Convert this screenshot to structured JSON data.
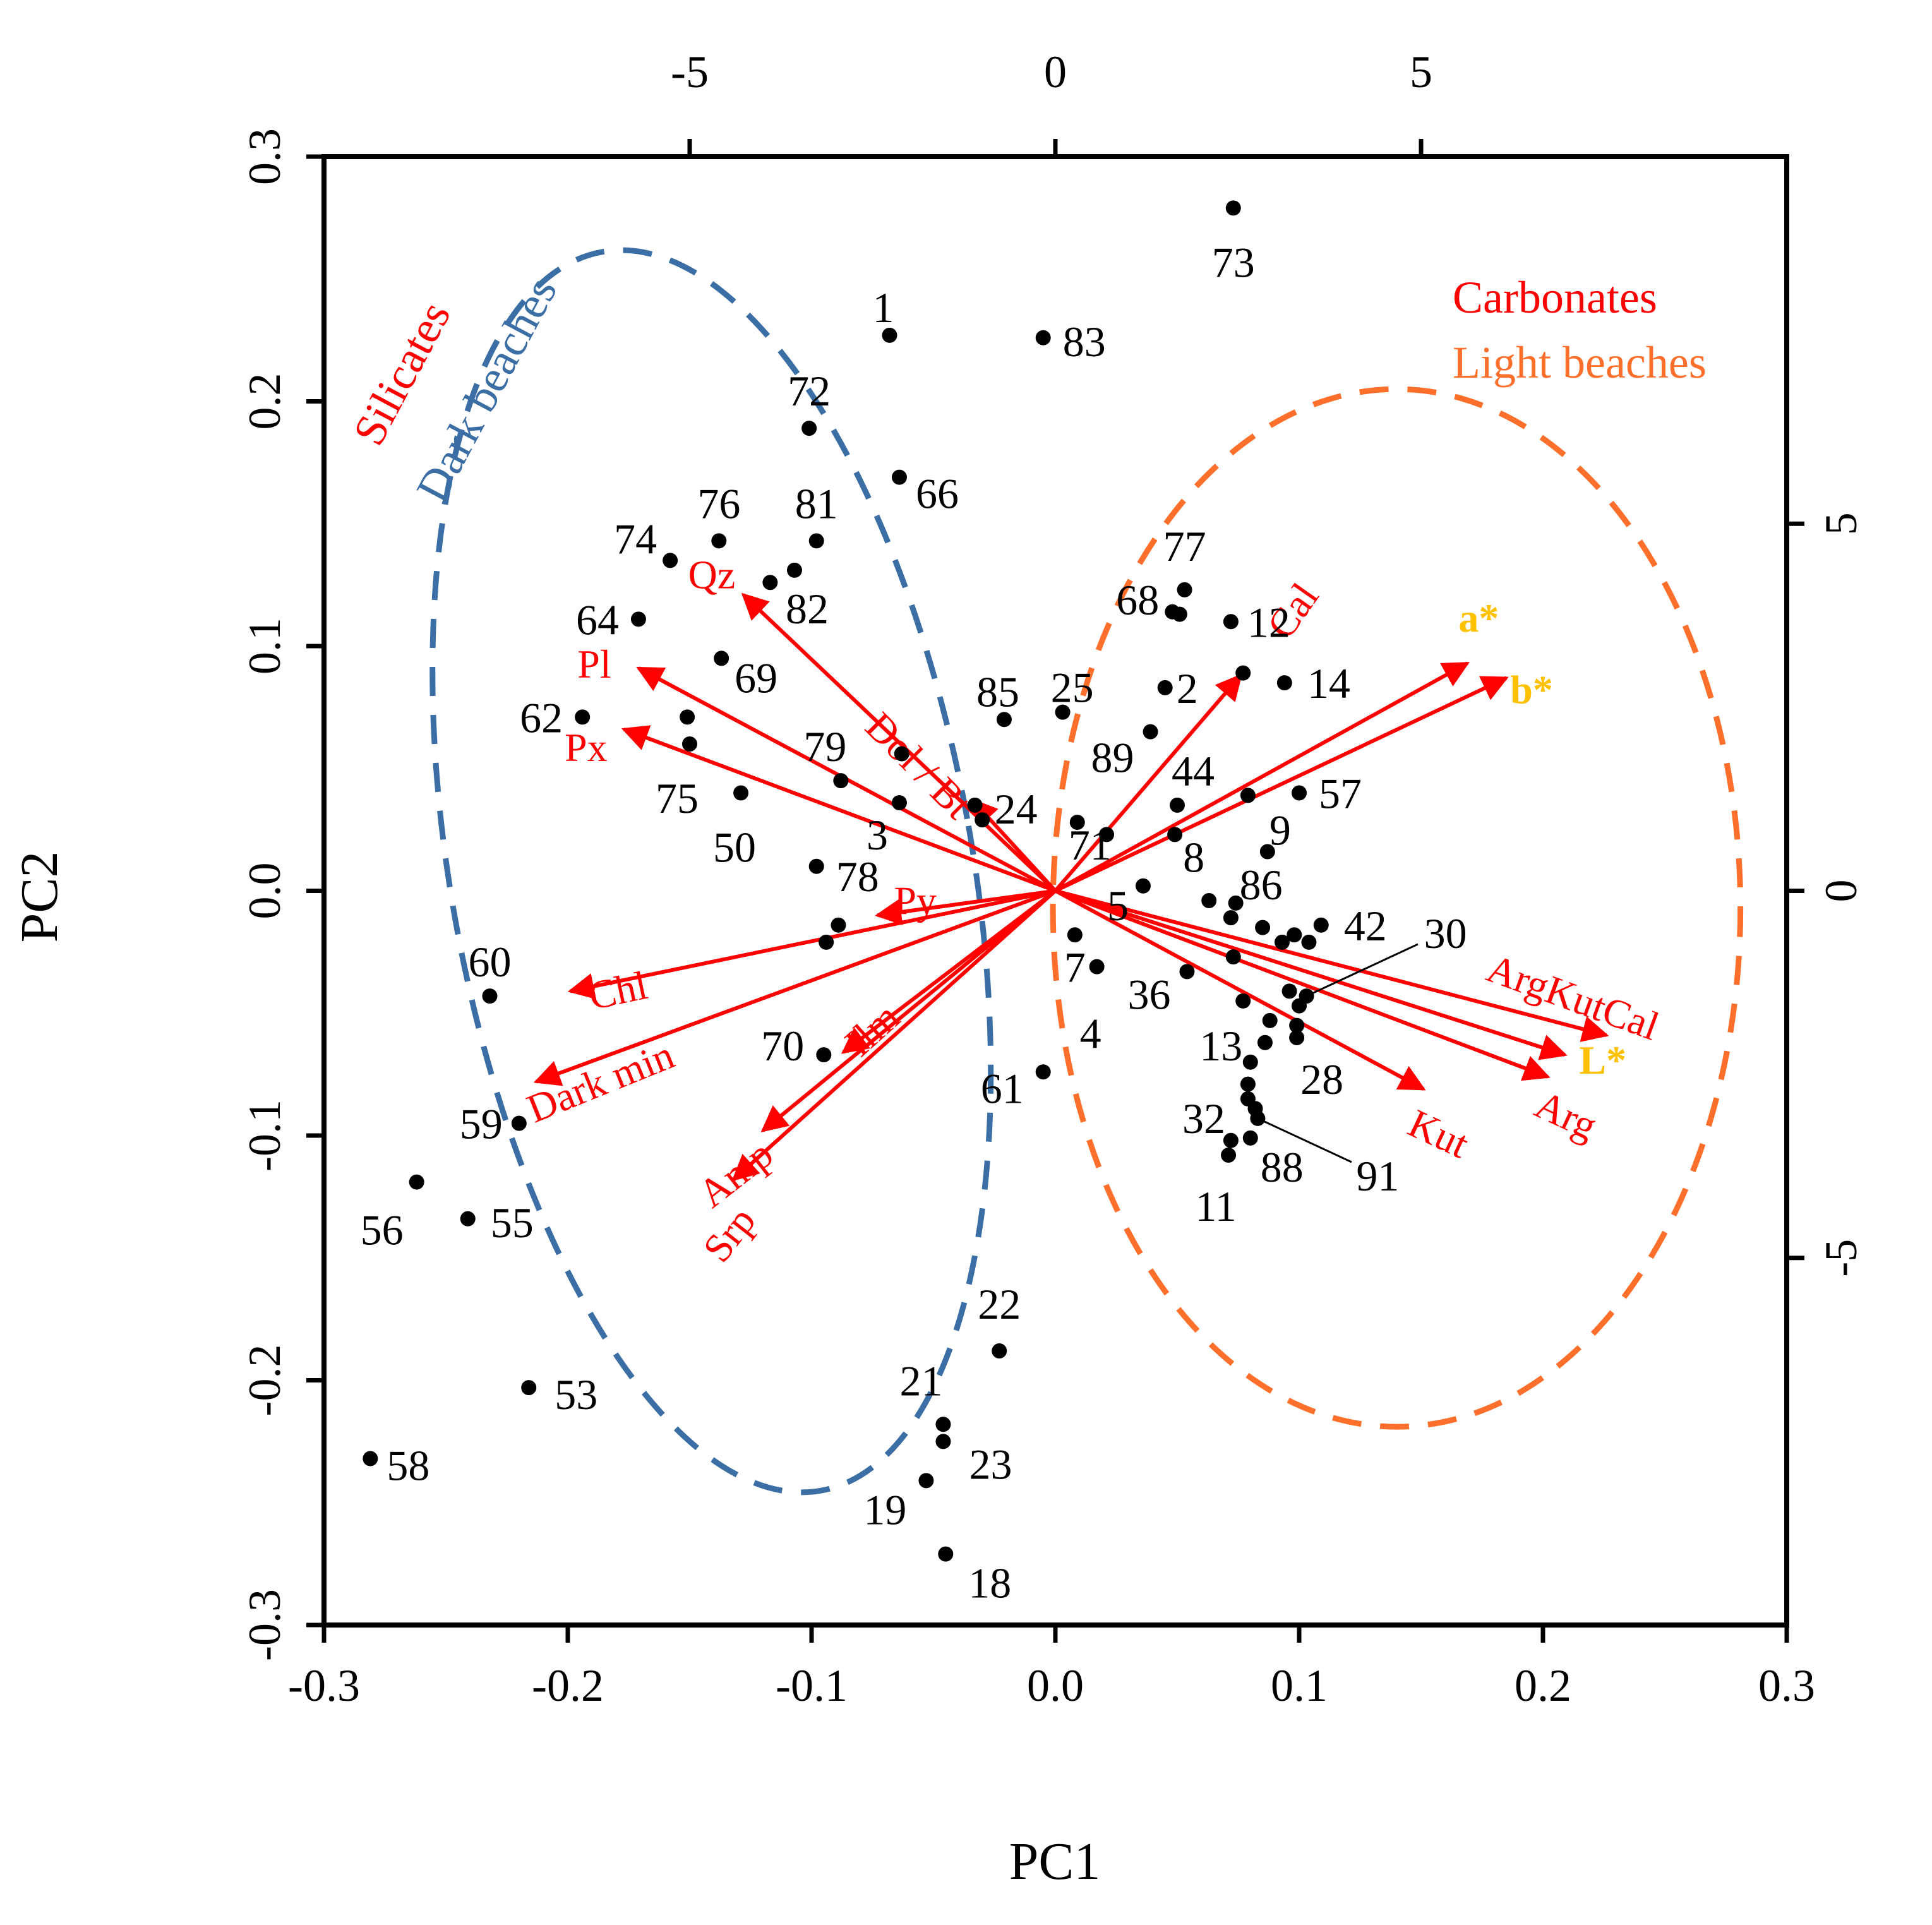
{
  "chart_data": {
    "type": "scatter",
    "subtype": "pca-biplot",
    "xlabel": "PC1",
    "ylabel": "PC2",
    "xlim": [
      -0.3,
      0.3
    ],
    "ylim": [
      -0.3,
      0.3
    ],
    "x_ticks": [
      "-0.3",
      "-0.2",
      "-0.1",
      "0.0",
      "0.1",
      "0.2",
      "0.3"
    ],
    "y_ticks": [
      "-0.3",
      "-0.2",
      "-0.1",
      "0.0",
      "0.1",
      "0.2",
      "0.3"
    ],
    "top_axis": {
      "range": [
        -10,
        10
      ],
      "ticks": [
        "-5",
        "0",
        "5"
      ]
    },
    "right_axis": {
      "range": [
        -10,
        10
      ],
      "ticks": [
        "-5",
        "0",
        "5"
      ]
    },
    "grid": false,
    "points": [
      {
        "label": "73",
        "x": 0.073,
        "y": 0.279
      },
      {
        "label": "1",
        "x": -0.068,
        "y": 0.227
      },
      {
        "label": "83",
        "x": -0.005,
        "y": 0.226
      },
      {
        "label": "72",
        "x": -0.101,
        "y": 0.189
      },
      {
        "label": "66",
        "x": -0.064,
        "y": 0.169
      },
      {
        "label": "74",
        "x": -0.158,
        "y": 0.135
      },
      {
        "label": "76",
        "x": -0.138,
        "y": 0.143
      },
      {
        "label": "81",
        "x": -0.098,
        "y": 0.143
      },
      {
        "label": "82",
        "x": -0.107,
        "y": 0.131
      },
      {
        "label": "",
        "x": -0.117,
        "y": 0.126
      },
      {
        "label": "64",
        "x": -0.171,
        "y": 0.111
      },
      {
        "label": "68",
        "x": 0.048,
        "y": 0.114
      },
      {
        "label": "77",
        "x": 0.053,
        "y": 0.123
      },
      {
        "label": "",
        "x": 0.051,
        "y": 0.113
      },
      {
        "label": "12",
        "x": 0.072,
        "y": 0.11
      },
      {
        "label": "69",
        "x": -0.137,
        "y": 0.095
      },
      {
        "label": "2",
        "x": 0.045,
        "y": 0.083
      },
      {
        "label": "",
        "x": 0.077,
        "y": 0.089
      },
      {
        "label": "14",
        "x": 0.094,
        "y": 0.085
      },
      {
        "label": "85",
        "x": -0.021,
        "y": 0.07
      },
      {
        "label": "25",
        "x": 0.003,
        "y": 0.073
      },
      {
        "label": "62",
        "x": -0.194,
        "y": 0.071
      },
      {
        "label": "",
        "x": -0.151,
        "y": 0.071
      },
      {
        "label": "75",
        "x": -0.15,
        "y": 0.06
      },
      {
        "label": "89",
        "x": 0.039,
        "y": 0.065
      },
      {
        "label": "79",
        "x": -0.088,
        "y": 0.045
      },
      {
        "label": "",
        "x": -0.063,
        "y": 0.056
      },
      {
        "label": "50",
        "x": -0.129,
        "y": 0.04
      },
      {
        "label": "3",
        "x": -0.064,
        "y": 0.036
      },
      {
        "label": "24",
        "x": -0.033,
        "y": 0.035
      },
      {
        "label": "",
        "x": -0.03,
        "y": 0.029
      },
      {
        "label": "71",
        "x": 0.009,
        "y": 0.028
      },
      {
        "label": "44",
        "x": 0.05,
        "y": 0.035
      },
      {
        "label": "57",
        "x": 0.1,
        "y": 0.04
      },
      {
        "label": "",
        "x": 0.079,
        "y": 0.039
      },
      {
        "label": "8",
        "x": 0.049,
        "y": 0.023
      },
      {
        "label": "9",
        "x": 0.087,
        "y": 0.016
      },
      {
        "label": "",
        "x": 0.021,
        "y": 0.023
      },
      {
        "label": "78",
        "x": -0.098,
        "y": 0.01
      },
      {
        "label": "5",
        "x": 0.036,
        "y": 0.002
      },
      {
        "label": "86",
        "x": 0.074,
        "y": -0.005
      },
      {
        "label": "42",
        "x": 0.109,
        "y": -0.014
      },
      {
        "label": "",
        "x": 0.063,
        "y": -0.004
      },
      {
        "label": "",
        "x": 0.072,
        "y": -0.011
      },
      {
        "label": "",
        "x": 0.085,
        "y": -0.015
      },
      {
        "label": "",
        "x": 0.098,
        "y": -0.018
      },
      {
        "label": "",
        "x": 0.104,
        "y": -0.021
      },
      {
        "label": "",
        "x": 0.093,
        "y": -0.021
      },
      {
        "label": "",
        "x": -0.089,
        "y": -0.014
      },
      {
        "label": "",
        "x": -0.094,
        "y": -0.021
      },
      {
        "label": "7",
        "x": 0.008,
        "y": -0.018
      },
      {
        "label": "4",
        "x": 0.017,
        "y": -0.031
      },
      {
        "label": "36",
        "x": 0.054,
        "y": -0.033
      },
      {
        "label": "",
        "x": 0.073,
        "y": -0.027
      },
      {
        "label": "60",
        "x": -0.232,
        "y": -0.043
      },
      {
        "label": "13",
        "x": 0.077,
        "y": -0.045
      },
      {
        "label": "",
        "x": 0.096,
        "y": -0.041
      },
      {
        "label": "30",
        "x": 0.103,
        "y": -0.043
      },
      {
        "label": "",
        "x": 0.1,
        "y": -0.047
      },
      {
        "label": "",
        "x": 0.088,
        "y": -0.053
      },
      {
        "label": "",
        "x": 0.099,
        "y": -0.055
      },
      {
        "label": "28",
        "x": 0.099,
        "y": -0.06
      },
      {
        "label": "",
        "x": 0.086,
        "y": -0.062
      },
      {
        "label": "",
        "x": 0.08,
        "y": -0.07
      },
      {
        "label": "70",
        "x": -0.095,
        "y": -0.067
      },
      {
        "label": "61",
        "x": -0.005,
        "y": -0.074
      },
      {
        "label": "",
        "x": 0.079,
        "y": -0.079
      },
      {
        "label": "32",
        "x": 0.079,
        "y": -0.085
      },
      {
        "label": "",
        "x": 0.082,
        "y": -0.089
      },
      {
        "label": "91",
        "x": 0.083,
        "y": -0.093
      },
      {
        "label": "59",
        "x": -0.22,
        "y": -0.095
      },
      {
        "label": "88",
        "x": 0.08,
        "y": -0.101
      },
      {
        "label": "",
        "x": 0.072,
        "y": -0.102
      },
      {
        "label": "11",
        "x": 0.071,
        "y": -0.108
      },
      {
        "label": "56",
        "x": -0.262,
        "y": -0.119
      },
      {
        "label": "55",
        "x": -0.241,
        "y": -0.134
      },
      {
        "label": "22",
        "x": -0.023,
        "y": -0.188
      },
      {
        "label": "53",
        "x": -0.216,
        "y": -0.203
      },
      {
        "label": "21",
        "x": -0.046,
        "y": -0.218
      },
      {
        "label": "23",
        "x": -0.046,
        "y": -0.225
      },
      {
        "label": "19",
        "x": -0.053,
        "y": -0.241
      },
      {
        "label": "58",
        "x": -0.281,
        "y": -0.232
      },
      {
        "label": "18",
        "x": -0.045,
        "y": -0.271
      }
    ],
    "vectors": [
      {
        "name": "Cal",
        "x": 0.076,
        "y": 0.088,
        "group": "mineral"
      },
      {
        "name": "a*",
        "x": 0.169,
        "y": 0.093,
        "group": "color"
      },
      {
        "name": "b*",
        "x": 0.185,
        "y": 0.087,
        "group": "color"
      },
      {
        "name": "Qz",
        "x": -0.128,
        "y": 0.121,
        "group": "mineral"
      },
      {
        "name": "Dol / Bt",
        "x": -0.034,
        "y": 0.037,
        "group": "mineral"
      },
      {
        "name": "Pl",
        "x": -0.171,
        "y": 0.091,
        "group": "mineral"
      },
      {
        "name": "Px",
        "x": -0.177,
        "y": 0.066,
        "group": "mineral"
      },
      {
        "name": "Py",
        "x": -0.073,
        "y": -0.01,
        "group": "mineral"
      },
      {
        "name": "Chl",
        "x": -0.199,
        "y": -0.041,
        "group": "mineral"
      },
      {
        "name": "Dark min",
        "x": -0.213,
        "y": -0.078,
        "group": "mineral"
      },
      {
        "name": "Ilm",
        "x": -0.087,
        "y": -0.066,
        "group": "mineral"
      },
      {
        "name": "Amp",
        "x": -0.12,
        "y": -0.098,
        "group": "mineral"
      },
      {
        "name": "Srp",
        "x": -0.132,
        "y": -0.118,
        "group": "mineral"
      },
      {
        "name": "ArgKutCal",
        "x": 0.226,
        "y": -0.059,
        "group": "mineral"
      },
      {
        "name": "L*",
        "x": 0.209,
        "y": -0.067,
        "group": "color"
      },
      {
        "name": "Arg",
        "x": 0.202,
        "y": -0.076,
        "group": "mineral"
      },
      {
        "name": "Kut",
        "x": 0.151,
        "y": -0.081,
        "group": "mineral"
      }
    ],
    "ellipses": [
      {
        "name": "Dark beaches",
        "color": "#3a6ea5",
        "cx": -0.141,
        "cy": 0.008,
        "rx": 0.107,
        "ry": 0.257,
        "angle_deg": -10
      },
      {
        "name": "Light beaches",
        "color": "#ff6f2c",
        "cx": 0.14,
        "cy": -0.007,
        "rx": 0.141,
        "ry": 0.212,
        "angle_deg": 0
      }
    ],
    "annotations": {
      "silicates": "Silicates",
      "dark_beaches": "Dark beaches",
      "carbonates": "Carbonates",
      "light_beaches": "Light beaches"
    },
    "leader_lines": [
      {
        "from": "30",
        "to_x": 0.103,
        "to_y": -0.043
      },
      {
        "from": "91",
        "to_x": 0.083,
        "to_y": -0.093
      }
    ],
    "colors": {
      "points": "#000000",
      "vectors": "#ff0000",
      "color_vectors_label": "#ffc000",
      "silicates": "#ff0000",
      "dark_beaches": "#3a6ea5",
      "carbonates": "#ff0000",
      "light_beaches": "#ff6f2c"
    }
  }
}
